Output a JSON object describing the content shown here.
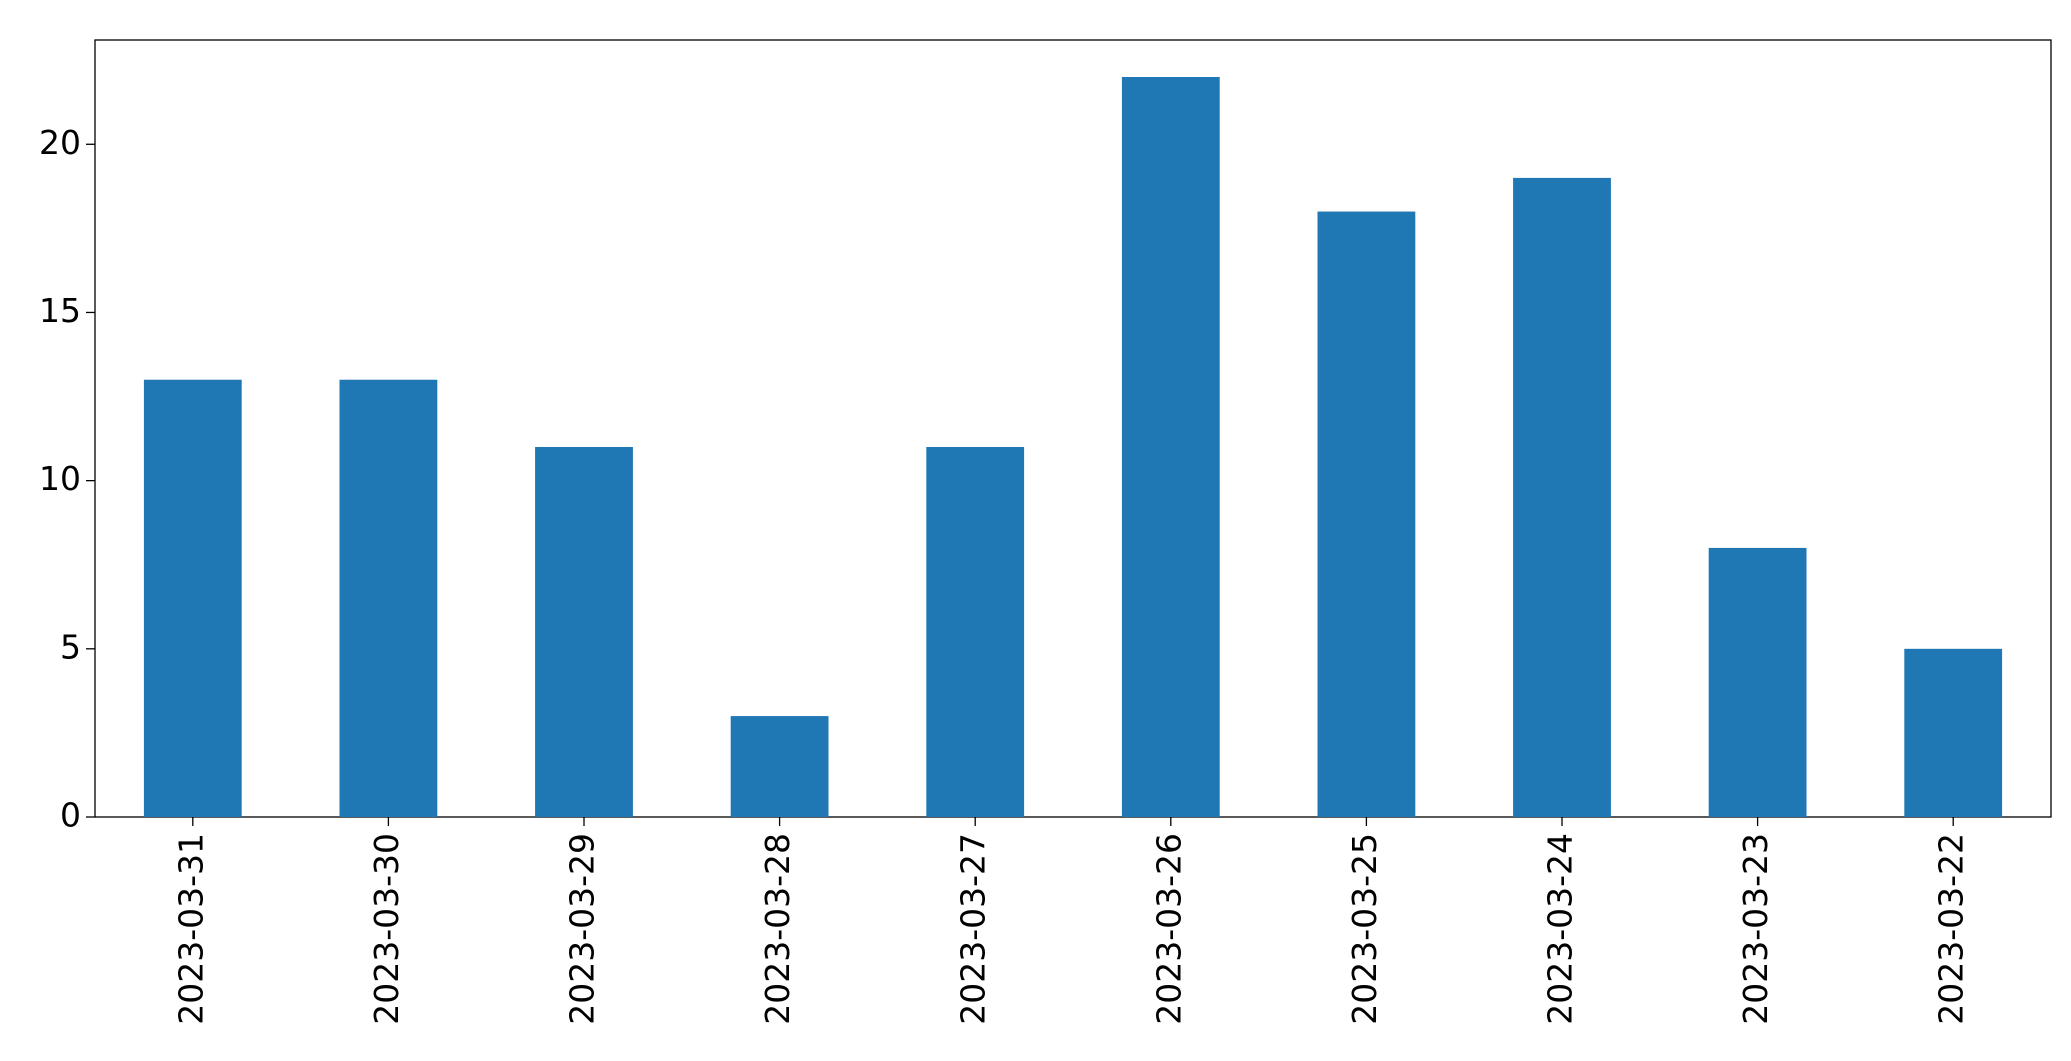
{
  "chart_data": {
    "type": "bar",
    "categories": [
      "2023-03-31",
      "2023-03-30",
      "2023-03-29",
      "2023-03-28",
      "2023-03-27",
      "2023-03-26",
      "2023-03-25",
      "2023-03-24",
      "2023-03-23",
      "2023-03-22"
    ],
    "values": [
      13,
      13,
      11,
      3,
      11,
      22,
      18,
      19,
      8,
      5
    ],
    "color": "#1f77b4",
    "ylim": [
      0,
      23.1
    ],
    "yticks": [
      0,
      5,
      10,
      15,
      20
    ],
    "grid": false
  }
}
